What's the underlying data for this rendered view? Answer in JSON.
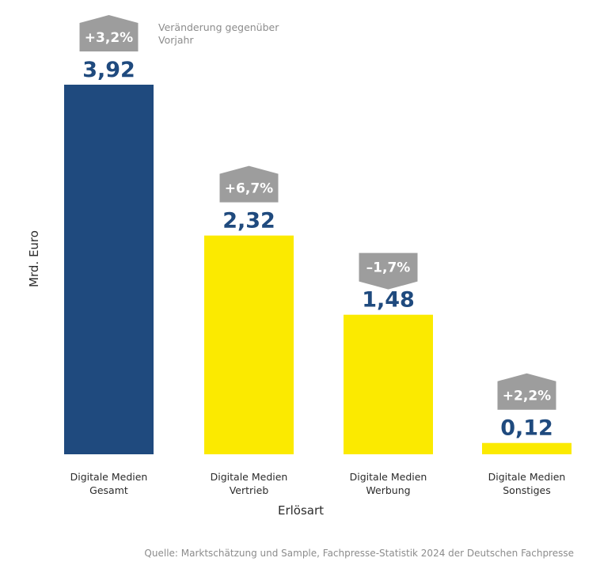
{
  "colors": {
    "primary_bar": "#1f4a7e",
    "secondary_bar": "#fbea00",
    "value_label": "#1f4a7e",
    "change_badge": "#9d9d9d",
    "change_text": "#ffffff",
    "note_text": "#8c8c8c"
  },
  "chart_data": {
    "type": "bar",
    "categories": [
      [
        "Digitale Medien",
        "Gesamt"
      ],
      [
        "Digitale Medien",
        "Vertrieb"
      ],
      [
        "Digitale Medien",
        "Werbung"
      ],
      [
        "Digitale Medien",
        "Sonstiges"
      ]
    ],
    "values": [
      3.92,
      2.32,
      1.48,
      0.12
    ],
    "value_labels": [
      "3,92",
      "2,32",
      "1,48",
      "0,12"
    ],
    "changes": [
      "+3,2%",
      "+6,7%",
      "–1,7%",
      "+2,2%"
    ],
    "change_direction": [
      "up",
      "up",
      "down",
      "up"
    ],
    "change_note": "Veränderung gegenüber Vorjahr",
    "xlabel": "Erlösart",
    "ylabel": "Mrd. Euro",
    "ylim": [
      0,
      3.92
    ],
    "grid": false,
    "legend": "none",
    "source": "Quelle: Marktschätzung und Sample, Fachpresse-Statistik 2024 der Deutschen Fachpresse"
  }
}
